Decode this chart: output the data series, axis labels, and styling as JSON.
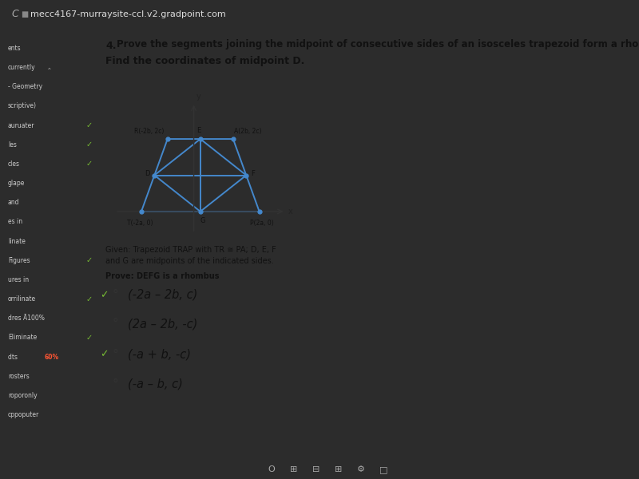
{
  "browser_url": "mecc4167-murraysite-ccl.v2.gradpoint.com",
  "browser_bg": "#2c2c2c",
  "browser_text": "#cccccc",
  "left_sidebar_bg": "#4a4e5a",
  "left_sidebar_text": "#cccccc",
  "content_bg": "#d8d4c0",
  "title_line1": "Prove the segments joining the midpoint of consecutive sides of an isosceles trapezoid form a rhombus.",
  "title_number": "4.",
  "subtitle": "Find the coordinates of midpoint D.",
  "trap_color": "#4488cc",
  "rhombus_color": "#4488cc",
  "axis_color": "#333333",
  "T": [
    -2.0,
    0.0
  ],
  "R": [
    -1.0,
    2.0
  ],
  "A": [
    1.5,
    2.0
  ],
  "P": [
    2.5,
    0.0
  ],
  "label_T": "T(-2a, 0)",
  "label_R": "R(-2b, 2c)",
  "label_A": "A(2b, 2c)",
  "label_P": "P(2a, 0)",
  "given_text1": "Given: Trapezoid TRAP with TR ≅ PA; D, E, F",
  "given_text2": "and G are midpoints of the indicated sides.",
  "prove_text": "Prove: DEFG is a rhombus",
  "choices": [
    "(-2a – 2b, c)",
    "(2a – 2b, -c)",
    "(-a + b, -c)",
    "(-a – b, c)"
  ],
  "check_indices": [
    0,
    2
  ],
  "score": "60%",
  "menu_items": [
    [
      "ents",
      false
    ],
    [
      "currently",
      false
    ],
    [
      "- Geometry",
      false
    ],
    [
      "scriptive)",
      false
    ],
    [
      "auruater",
      true
    ],
    [
      "les",
      true
    ],
    [
      "cles",
      true
    ],
    [
      "glape",
      false
    ],
    [
      "and",
      false
    ],
    [
      "es in",
      false
    ],
    [
      "linate",
      false
    ],
    [
      "Figures",
      true
    ],
    [
      "ures in",
      false
    ],
    [
      "orrilinate",
      true
    ],
    [
      "dres Ā100%",
      false
    ],
    [
      "Eliminate",
      true
    ],
    [
      "dts  60%",
      false
    ],
    [
      "rosters",
      false
    ],
    [
      "roporonly",
      false
    ],
    [
      "cppoputer",
      false
    ]
  ],
  "taskbar_bg": "#1a1a28"
}
